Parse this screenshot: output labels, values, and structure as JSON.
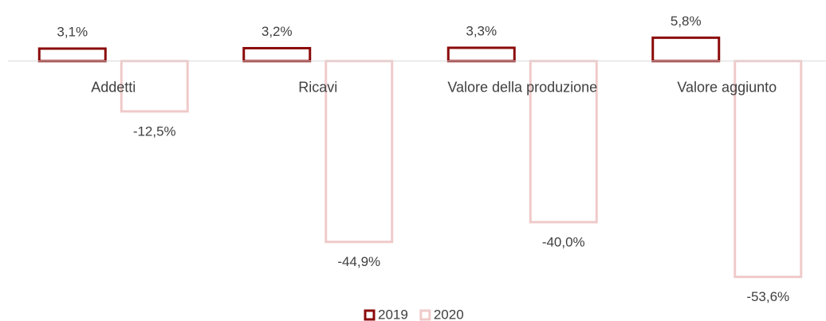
{
  "chart_data": {
    "type": "bar",
    "categories": [
      "Addetti",
      "Ricavi",
      "Valore della produzione",
      "Valore aggiunto"
    ],
    "series": [
      {
        "name": "2019",
        "color": "#8b0a0a",
        "values": [
          3.1,
          3.2,
          3.3,
          5.8
        ],
        "value_labels": [
          "3,1%",
          "3,2%",
          "3,3%",
          "5,8%"
        ]
      },
      {
        "name": "2020",
        "color": "#f0caca",
        "values": [
          -12.5,
          -44.9,
          -40.0,
          -53.6
        ],
        "value_labels": [
          "-12,5%",
          "-44,9%",
          "-40,0%",
          "-53,6%"
        ]
      }
    ],
    "ylim": [
      -60,
      12
    ],
    "legend": "bottom"
  }
}
